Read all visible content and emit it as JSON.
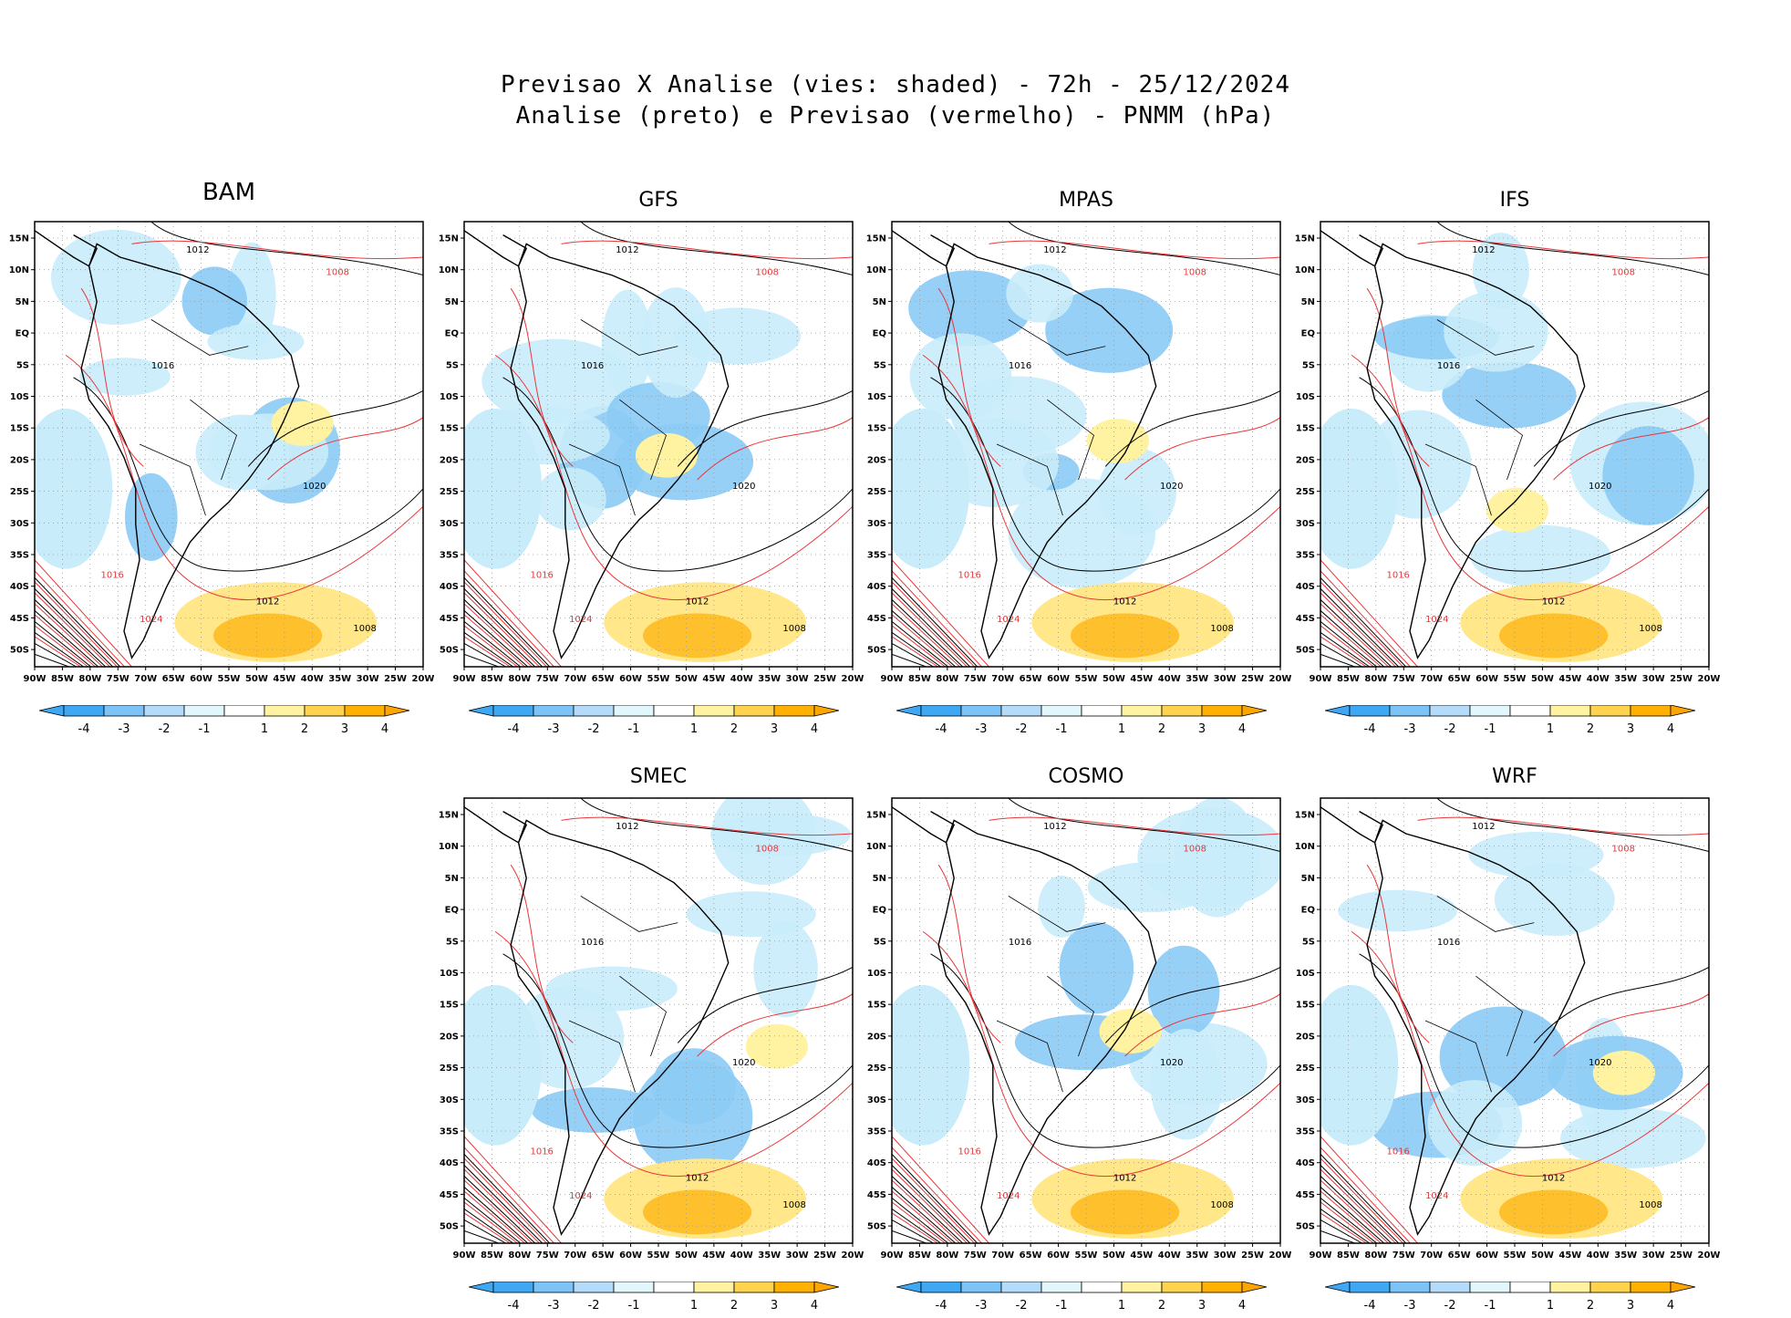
{
  "title_line1": "Previsao X Analise (vies: shaded) - 72h - 25/12/2024",
  "title_line2": "Analise (preto) e Previsao (vermelho) - PNMM (hPa)",
  "panels": [
    {
      "name": "BAM",
      "isobars": [
        "1012",
        "1008",
        "1016",
        "1020",
        "1024"
      ]
    },
    {
      "name": "GFS",
      "isobars": [
        "1012",
        "1008",
        "1016",
        "1020",
        "1024"
      ]
    },
    {
      "name": "MPAS",
      "isobars": [
        "1012",
        "1008",
        "1016",
        "1020",
        "1024"
      ]
    },
    {
      "name": "IFS",
      "isobars": [
        "1012",
        "1008",
        "1016",
        "1020",
        "1024"
      ]
    },
    {
      "name": "SMEC",
      "isobars": [
        "1012",
        "1008",
        "1016",
        "1020",
        "1024"
      ]
    },
    {
      "name": "COSMO",
      "isobars": [
        "1012",
        "1008",
        "1016",
        "1020",
        "1024"
      ]
    },
    {
      "name": "WRF",
      "isobars": [
        "1012",
        "1008",
        "1016",
        "1020",
        "1024"
      ]
    }
  ],
  "lat_ticks": [
    "15N",
    "10N",
    "5N",
    "EQ",
    "5S",
    "10S",
    "15S",
    "20S",
    "25S",
    "30S",
    "35S",
    "40S",
    "45S",
    "50S"
  ],
  "lon_ticks": [
    "90W",
    "85W",
    "80W",
    "75W",
    "70W",
    "65W",
    "60W",
    "55W",
    "50W",
    "45W",
    "40W",
    "35W",
    "30W",
    "25W",
    "20W"
  ],
  "colorbar": {
    "labels": [
      "-4",
      "-3",
      "-2",
      "-1",
      "1",
      "2",
      "3",
      "4"
    ],
    "colors": [
      "#3ea8f5",
      "#7cc4f8",
      "#b4dcfa",
      "#e2f7fb",
      "#ffffff",
      "#fff2a0",
      "#ffd34d",
      "#ffb000",
      "#ffa500"
    ]
  },
  "colors": {
    "analysis": "#000000",
    "forecast": "#e8373a",
    "neg_bias": "#8ccbf5",
    "pos_bias": "#ffd66b"
  }
}
